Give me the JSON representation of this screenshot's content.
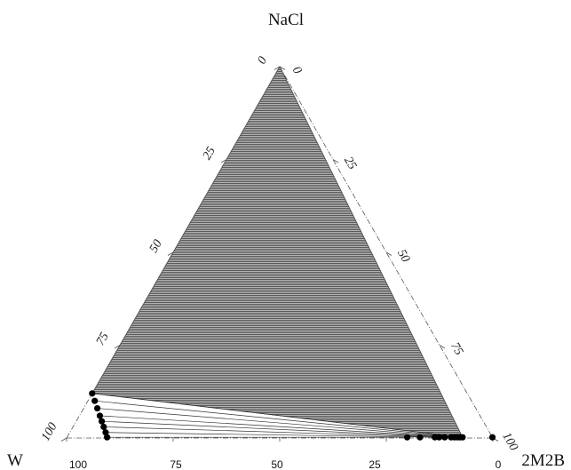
{
  "chart_data": {
    "type": "scatter",
    "subtype": "ternary-phase-diagram",
    "vertices": {
      "top": "NaCl",
      "left": "W",
      "right": "2M2B"
    },
    "left_side_ticks": [
      "100",
      "75",
      "50",
      "25",
      "0"
    ],
    "right_side_ticks": [
      "0",
      "25",
      "50",
      "75",
      "100"
    ],
    "bottom_ticks": [
      "100",
      "75",
      "50",
      "25",
      "0"
    ],
    "three_phase_region": {
      "fill": "#8a8a8a",
      "pattern": "dense-horizontal-lines"
    },
    "binodal_left_points": [
      {
        "w": 88.0,
        "nacl": 12.0
      },
      {
        "w": 88.4,
        "nacl": 10.0
      },
      {
        "w": 88.8,
        "nacl": 8.0
      },
      {
        "w": 89.2,
        "nacl": 6.0
      },
      {
        "w": 89.5,
        "nacl": 4.5
      },
      {
        "w": 89.8,
        "nacl": 3.0
      },
      {
        "w": 90.1,
        "nacl": 1.5
      },
      {
        "w": 90.4,
        "nacl": 0.2
      }
    ],
    "binodal_right_points": [
      {
        "w": 7.0,
        "nacl": 0.2
      },
      {
        "w": 7.6,
        "nacl": 0.2
      },
      {
        "w": 8.2,
        "nacl": 0.2
      },
      {
        "w": 8.9,
        "nacl": 0.2
      },
      {
        "w": 9.7,
        "nacl": 0.2
      },
      {
        "w": 11.2,
        "nacl": 0.2
      },
      {
        "w": 12.5,
        "nacl": 0.2
      },
      {
        "w": 13.5,
        "nacl": 0.2
      },
      {
        "w": 17.0,
        "nacl": 0.2
      },
      {
        "w": 20.0,
        "nacl": 0.2
      }
    ],
    "extra_points": [
      {
        "w": 0.0,
        "nacl": 0.2
      }
    ],
    "tie_lines": [
      {
        "from": {
          "w": 88.0,
          "nacl": 12.0
        },
        "to": {
          "w": 7.0,
          "nacl": 0.2
        }
      },
      {
        "from": {
          "w": 88.4,
          "nacl": 10.0
        },
        "to": {
          "w": 7.6,
          "nacl": 0.2
        }
      },
      {
        "from": {
          "w": 88.8,
          "nacl": 8.0
        },
        "to": {
          "w": 8.2,
          "nacl": 0.2
        }
      },
      {
        "from": {
          "w": 89.2,
          "nacl": 6.0
        },
        "to": {
          "w": 8.9,
          "nacl": 0.2
        }
      },
      {
        "from": {
          "w": 89.5,
          "nacl": 4.5
        },
        "to": {
          "w": 9.7,
          "nacl": 0.2
        }
      },
      {
        "from": {
          "w": 89.8,
          "nacl": 3.0
        },
        "to": {
          "w": 11.2,
          "nacl": 0.2
        }
      },
      {
        "from": {
          "w": 90.1,
          "nacl": 1.5
        },
        "to": {
          "w": 13.5,
          "nacl": 0.2
        }
      },
      {
        "from": {
          "w": 90.4,
          "nacl": 0.2
        },
        "to": {
          "w": 20.0,
          "nacl": 0.2
        }
      }
    ],
    "three_phase_corners": [
      {
        "w": 0.0,
        "nacl": 100.0
      },
      {
        "w": 88.0,
        "nacl": 12.0
      },
      {
        "w": 7.0,
        "nacl": 0.2
      }
    ]
  }
}
